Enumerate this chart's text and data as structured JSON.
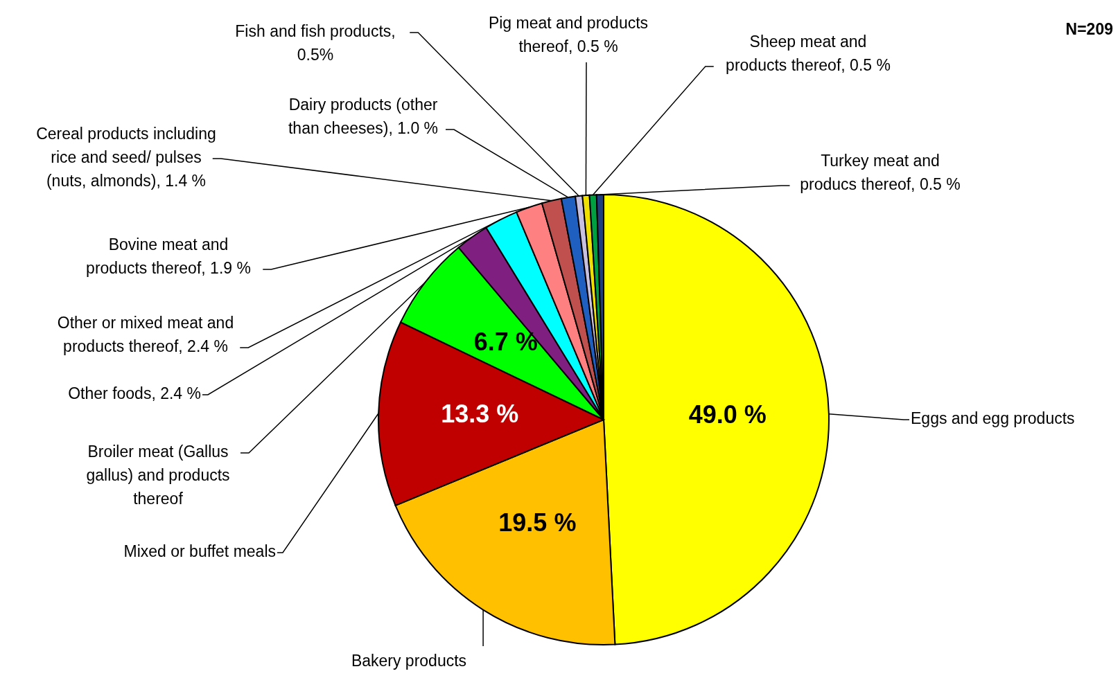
{
  "chart_data": {
    "type": "pie",
    "categories": [
      "Eggs and egg products",
      "Bakery products",
      "Mixed or buffet meals",
      "Broiler meat (Gallus\ngallus) and products\nthereof",
      "Other foods, 2.4 %",
      "Other or mixed meat and\nproducts thereof, 2.4 %",
      "Bovine meat and\nproducts thereof, 1.9 %",
      "Cereal products including\nrice and seed/ pulses\n(nuts, almonds), 1.4 %",
      "Dairy products (other\nthan cheeses), 1.0 %",
      "Fish and fish products,\n0.5%",
      "Pig meat and products\nthereof, 0.5 %",
      "Sheep meat and\nproducts thereof, 0.5 %",
      "Turkey meat and\nproducs thereof, 0.5 %"
    ],
    "values": [
      49.0,
      19.5,
      13.3,
      6.7,
      2.4,
      2.4,
      1.9,
      1.4,
      1.0,
      0.5,
      0.5,
      0.5,
      0.5
    ],
    "value_labels": [
      "49.0 %",
      "19.5 %",
      "13.3 %",
      "6.7 %",
      null,
      null,
      null,
      null,
      null,
      null,
      null,
      null,
      null
    ],
    "colors": [
      "#ffff00",
      "#ffc000",
      "#c00000",
      "#00ff00",
      "#7f1f7f",
      "#00ffff",
      "#ff8080",
      "#c0504d",
      "#1f5fbf",
      "#c8c0e0",
      "#f0e000",
      "#00a040",
      "#1f3f7f"
    ],
    "annotations": [
      "N=209"
    ]
  }
}
